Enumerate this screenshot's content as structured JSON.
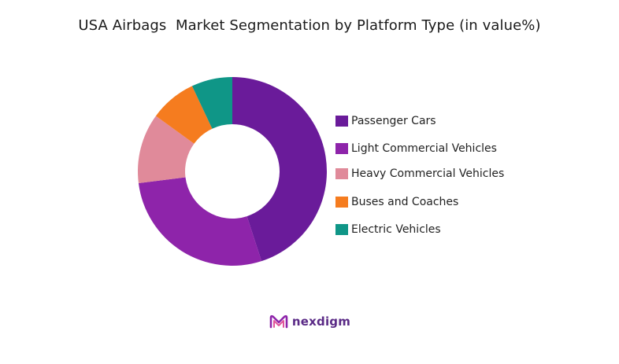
{
  "chart_data": {
    "type": "pie",
    "donut": true,
    "title": "USA Airbags  Market Segmentation by Platform Type (in value%)",
    "categories": [
      "Passenger Cars",
      "Light Commercial Vehicles",
      "Heavy Commercial Vehicles",
      "Buses and Coaches",
      "Electric Vehicles"
    ],
    "values": [
      45,
      28,
      12,
      8,
      7
    ],
    "colors": [
      "#6a1b9a",
      "#8e24aa",
      "#e08a9a",
      "#f57c1f",
      "#0f9687"
    ],
    "legend_position": "right"
  },
  "brand": {
    "name": "nexdigm",
    "color": "#5a2a86"
  }
}
